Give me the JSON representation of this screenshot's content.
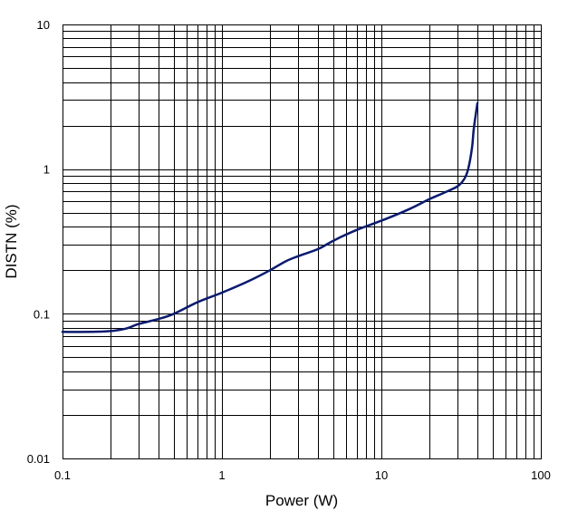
{
  "chart_data": {
    "type": "line",
    "title": "",
    "xlabel": "Power (W)",
    "ylabel": "DISTN (%)",
    "x_scale": "log",
    "y_scale": "log",
    "xlim": [
      0.1,
      100
    ],
    "ylim": [
      0.01,
      10
    ],
    "grid": true,
    "x_ticks": [
      {
        "value": 0.1,
        "label": "0.1"
      },
      {
        "value": 1,
        "label": "1"
      },
      {
        "value": 10,
        "label": "10"
      },
      {
        "value": 100,
        "label": "100"
      }
    ],
    "y_ticks": [
      {
        "value": 0.01,
        "label": "0.01"
      },
      {
        "value": 0.1,
        "label": "0.1"
      },
      {
        "value": 1,
        "label": "1"
      },
      {
        "value": 10,
        "label": "10"
      }
    ],
    "series": [
      {
        "color": "#0a1a6e",
        "x": [
          0.1,
          0.15,
          0.2,
          0.25,
          0.3,
          0.4,
          0.5,
          0.7,
          1,
          1.5,
          2,
          2.5,
          3,
          4,
          5,
          7,
          10,
          15,
          20,
          25,
          30,
          33,
          35,
          37,
          38,
          40
        ],
        "y": [
          0.075,
          0.075,
          0.076,
          0.079,
          0.085,
          0.092,
          0.1,
          0.12,
          0.14,
          0.17,
          0.2,
          0.23,
          0.25,
          0.28,
          0.32,
          0.38,
          0.44,
          0.53,
          0.62,
          0.69,
          0.76,
          0.85,
          1.0,
          1.4,
          1.9,
          2.85
        ]
      }
    ]
  }
}
